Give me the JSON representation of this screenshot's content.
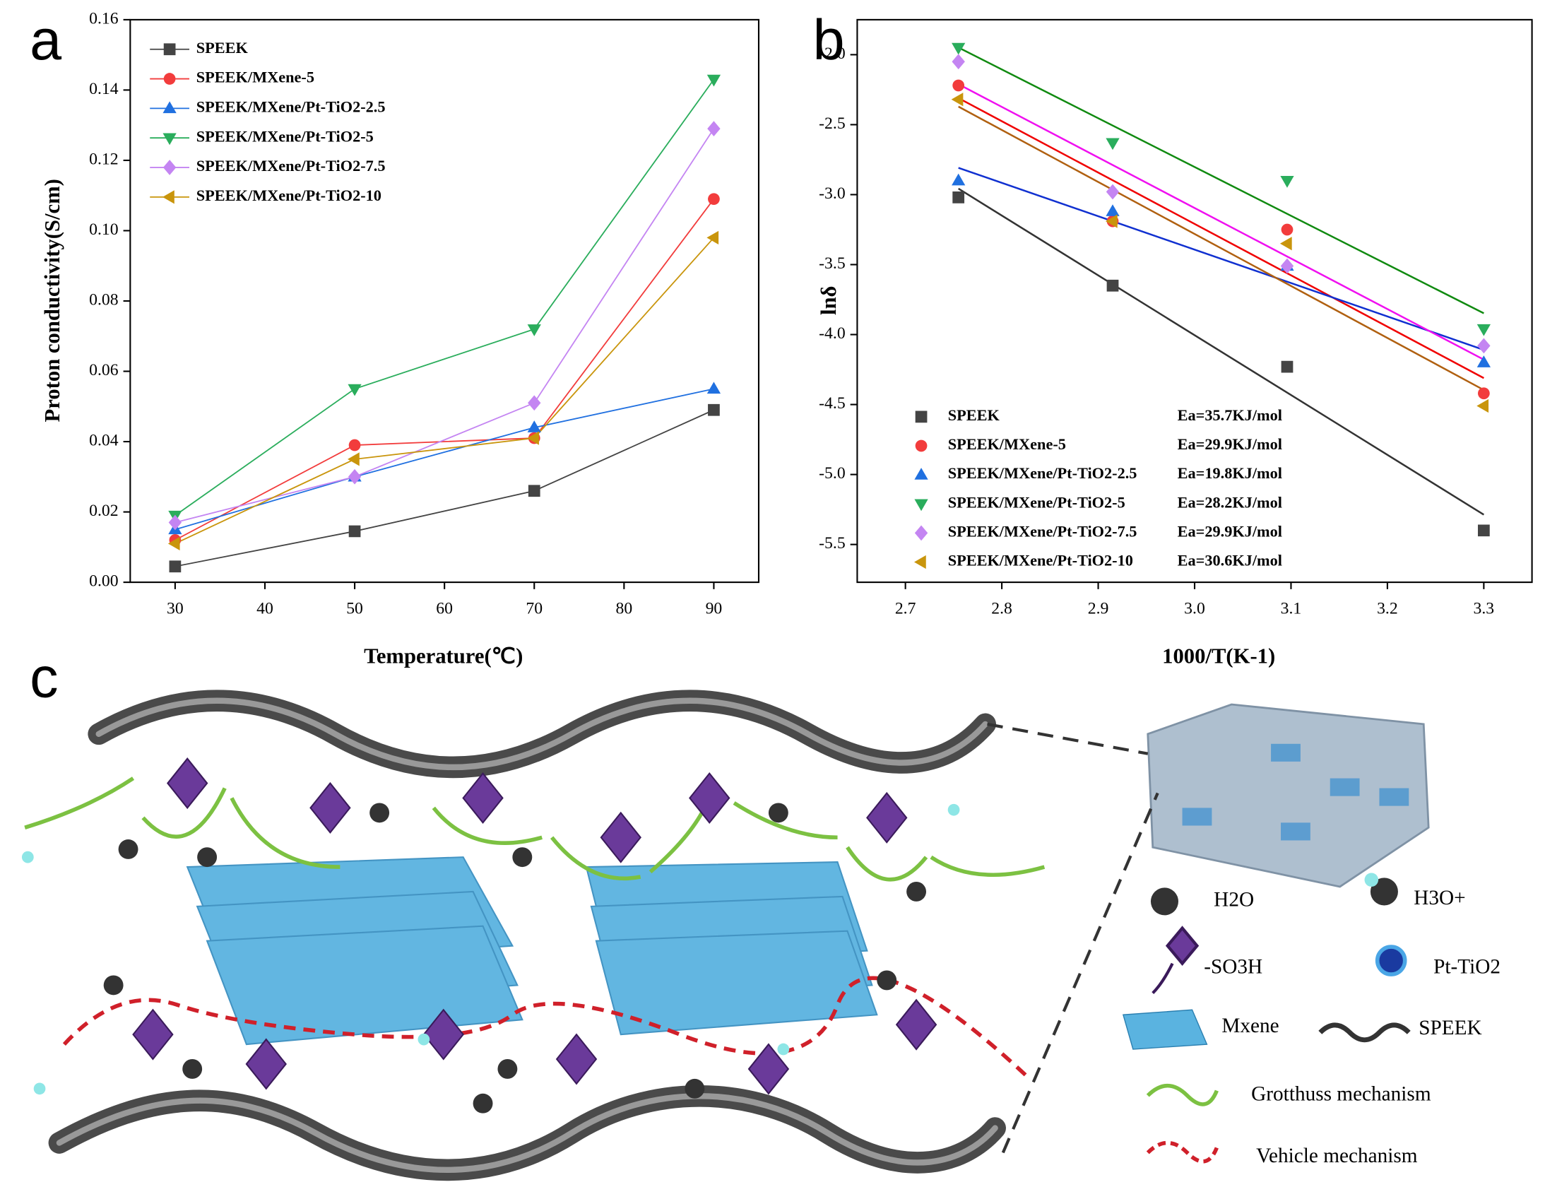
{
  "chart_data": [
    {
      "type": "line",
      "panel": "a",
      "x_label": "Temperature(℃)",
      "y_label": "Proton conductivity(S/cm)",
      "x": [
        30,
        50,
        70,
        90
      ],
      "xlim": [
        25,
        95
      ],
      "xticks": [
        30,
        40,
        50,
        60,
        70,
        80,
        90
      ],
      "ylim": [
        0,
        0.16
      ],
      "yticks": [
        {
          "value": 0,
          "label": "0.00"
        },
        {
          "value": 0.02,
          "label": "0.02"
        },
        {
          "value": 0.04,
          "label": "0.04"
        },
        {
          "value": 0.06,
          "label": "0.06"
        },
        {
          "value": 0.08,
          "label": "0.08"
        },
        {
          "value": 0.1,
          "label": "0.10"
        },
        {
          "value": 0.12,
          "label": "0.12"
        },
        {
          "value": 0.14,
          "label": "0.14"
        },
        {
          "value": 0.16,
          "label": "0.16"
        }
      ],
      "legend": "upper left",
      "series": [
        {
          "name": "SPEEK",
          "color": "#444444",
          "marker": "square",
          "values": [
            0.0045,
            0.0145,
            0.026,
            0.049
          ]
        },
        {
          "name": "SPEEK/MXene-5",
          "color": "#f23c3c",
          "marker": "circle",
          "values": [
            0.012,
            0.039,
            0.041,
            0.109
          ]
        },
        {
          "name": "SPEEK/MXene/Pt-TiO2-2.5",
          "color": "#2070e0",
          "marker": "triangle-up",
          "values": [
            0.015,
            0.03,
            0.044,
            0.055
          ]
        },
        {
          "name": "SPEEK/MXene/Pt-TiO2-5",
          "color": "#2aad5c",
          "marker": "triangle-down",
          "values": [
            0.019,
            0.055,
            0.072,
            0.143
          ]
        },
        {
          "name": "SPEEK/MXene/Pt-TiO2-7.5",
          "color": "#c485f2",
          "marker": "diamond",
          "values": [
            0.017,
            0.03,
            0.051,
            0.129
          ]
        },
        {
          "name": "SPEEK/MXene/Pt-TiO2-10",
          "color": "#c9950c",
          "marker": "triangle-left",
          "values": [
            0.011,
            0.035,
            0.041,
            0.098
          ]
        }
      ]
    },
    {
      "type": "scatter",
      "panel": "b",
      "x_label": "1000/T(K-1)",
      "y_label": "lnδ",
      "fit": true,
      "x": [
        2.755,
        2.915,
        3.096,
        3.3
      ],
      "xlim": [
        2.65,
        3.35
      ],
      "xticks": [
        2.7,
        2.8,
        2.9,
        {
          "value": 3,
          "label": "3.0"
        },
        3.1,
        3.2,
        3.3
      ],
      "ylim": [
        -5.77,
        -1.75
      ],
      "yticks": [
        {
          "value": -2,
          "label": "-2.0"
        },
        -2.5,
        {
          "value": -3,
          "label": "-3.0"
        },
        -3.5,
        {
          "value": -4,
          "label": "-4.0"
        },
        -4.5,
        {
          "value": -5,
          "label": "-5.0"
        },
        -5.5
      ],
      "legend": "lower left",
      "series": [
        {
          "name": "SPEEK",
          "annotation": "Ea=35.7KJ/mol",
          "color": "#444444",
          "line_color": "#333333",
          "marker": "square",
          "values": [
            -3.02,
            -3.65,
            -4.23,
            -5.4
          ]
        },
        {
          "name": "SPEEK/MXene-5",
          "annotation": "Ea=29.9KJ/mol",
          "color": "#f23c3c",
          "line_color": "#f00000",
          "marker": "circle",
          "values": [
            -2.22,
            -3.19,
            -3.25,
            -4.42
          ]
        },
        {
          "name": "SPEEK/MXene/Pt-TiO2-2.5",
          "annotation": "Ea=19.8KJ/mol",
          "color": "#2070e0",
          "line_color": "#1030d0",
          "marker": "triangle-up",
          "values": [
            -2.9,
            -3.12,
            -3.51,
            -4.2
          ]
        },
        {
          "name": "SPEEK/MXene/Pt-TiO2-5",
          "annotation": "Ea=28.2KJ/mol",
          "color": "#2aad5c",
          "line_color": "#108a10",
          "marker": "triangle-down",
          "values": [
            -1.95,
            -2.63,
            -2.9,
            -3.96
          ]
        },
        {
          "name": "SPEEK/MXene/Pt-TiO2-7.5",
          "annotation": "Ea=29.9KJ/mol",
          "color": "#c485f2",
          "line_color": "#f010f0",
          "marker": "diamond",
          "values": [
            -2.05,
            -2.98,
            -3.51,
            -4.08
          ]
        },
        {
          "name": "SPEEK/MXene/Pt-TiO2-10",
          "annotation": "Ea=30.6KJ/mol",
          "color": "#c9950c",
          "line_color": "#b06010",
          "marker": "triangle-left",
          "values": [
            -2.32,
            -3.19,
            -3.35,
            -4.51
          ]
        }
      ]
    }
  ],
  "diagram": {
    "panel": "c",
    "legend": [
      "H2O",
      "H3O+",
      "-SO3H",
      "Pt-TiO2",
      "Mxene",
      "SPEEK",
      "Grotthuss mechanism",
      "Vehicle mechanism"
    ]
  }
}
